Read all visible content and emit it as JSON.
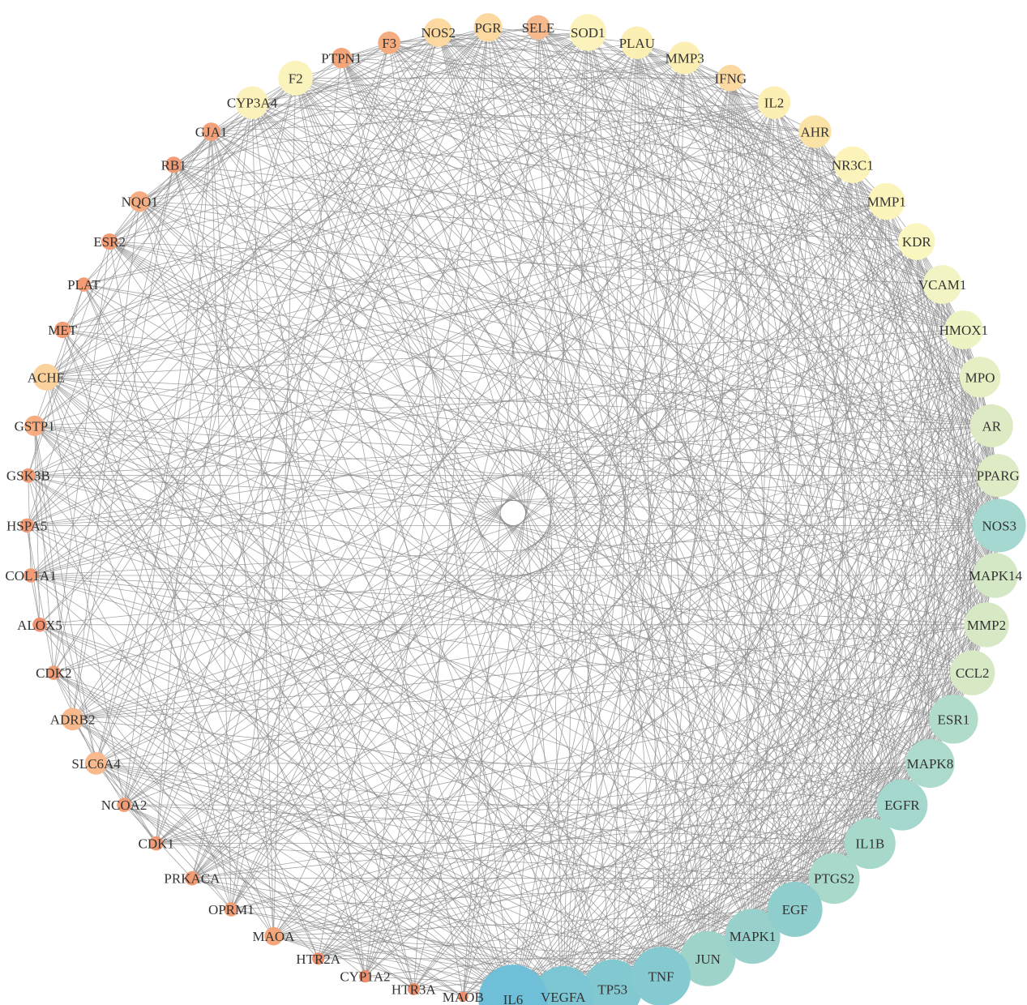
{
  "network": {
    "nodes": [
      {
        "label": "IL6",
        "degree": 68,
        "color": "#6fbfd9"
      },
      {
        "label": "VEGFA",
        "degree": 60,
        "color": "#7cc5d2"
      },
      {
        "label": "TP53",
        "degree": 58,
        "color": "#82c8d1"
      },
      {
        "label": "TNF",
        "degree": 58,
        "color": "#86cad1"
      },
      {
        "label": "JUN",
        "degree": 54,
        "color": "#9dd3c9"
      },
      {
        "label": "MAPK1",
        "degree": 54,
        "color": "#98d1cb"
      },
      {
        "label": "EGF",
        "degree": 54,
        "color": "#90cdcd"
      },
      {
        "label": "PTGS2",
        "degree": 50,
        "color": "#a9d9cb"
      },
      {
        "label": "IL1B",
        "degree": 50,
        "color": "#a6d8cc"
      },
      {
        "label": "EGFR",
        "degree": 50,
        "color": "#a4d7cd"
      },
      {
        "label": "MAPK8",
        "degree": 48,
        "color": "#acdacc"
      },
      {
        "label": "ESR1",
        "degree": 48,
        "color": "#b1dcca"
      },
      {
        "label": "CCL2",
        "degree": 44,
        "color": "#d7e8c4"
      },
      {
        "label": "MMP2",
        "degree": 44,
        "color": "#d7e8c4"
      },
      {
        "label": "MAPK14",
        "degree": 44,
        "color": "#d5e8c5"
      },
      {
        "label": "NOS3",
        "degree": 52,
        "color": "#a5d8d0"
      },
      {
        "label": "PPARG",
        "degree": 42,
        "color": "#deebc4"
      },
      {
        "label": "AR",
        "degree": 42,
        "color": "#ddeac4"
      },
      {
        "label": "MPO",
        "degree": 40,
        "color": "#e6efc3"
      },
      {
        "label": "HMOX1",
        "degree": 38,
        "color": "#eef3c4"
      },
      {
        "label": "VCAM1",
        "degree": 38,
        "color": "#f2f4c3"
      },
      {
        "label": "KDR",
        "degree": 36,
        "color": "#faf6c0"
      },
      {
        "label": "MMP1",
        "degree": 36,
        "color": "#fcf5bb"
      },
      {
        "label": "NR3C1",
        "degree": 36,
        "color": "#fcf3bb"
      },
      {
        "label": "AHR",
        "degree": 32,
        "color": "#fbe3a6"
      },
      {
        "label": "IL2",
        "degree": 32,
        "color": "#fcefb4"
      },
      {
        "label": "IFNG",
        "degree": 26,
        "color": "#fcd9a0"
      },
      {
        "label": "MMP3",
        "degree": 32,
        "color": "#fcefb4"
      },
      {
        "label": "PLAU",
        "degree": 32,
        "color": "#fcefb4"
      },
      {
        "label": "SOD1",
        "degree": 36,
        "color": "#fcf2bb"
      },
      {
        "label": "SELE",
        "degree": 24,
        "color": "#f6b98d"
      },
      {
        "label": "PGR",
        "degree": 28,
        "color": "#fbd9a0"
      },
      {
        "label": "NOS2",
        "degree": 28,
        "color": "#fcd9a0"
      },
      {
        "label": "F3",
        "degree": 22,
        "color": "#f5ad80"
      },
      {
        "label": "PTPN1",
        "degree": 20,
        "color": "#f4a57a"
      },
      {
        "label": "F2",
        "degree": 34,
        "color": "#fbf3bc"
      },
      {
        "label": "CYP3A4",
        "degree": 32,
        "color": "#fbf1ba"
      },
      {
        "label": "GJA1",
        "degree": 18,
        "color": "#f3a27a"
      },
      {
        "label": "RB1",
        "degree": 16,
        "color": "#f29c75"
      },
      {
        "label": "NQO1",
        "degree": 20,
        "color": "#f6ad81"
      },
      {
        "label": "ESR2",
        "degree": 16,
        "color": "#f29c75"
      },
      {
        "label": "PLAT",
        "degree": 14,
        "color": "#f29c75"
      },
      {
        "label": "MET",
        "degree": 16,
        "color": "#f29c75"
      },
      {
        "label": "ACHE",
        "degree": 26,
        "color": "#fbd29c"
      },
      {
        "label": "GSTP1",
        "degree": 20,
        "color": "#f6ad81"
      },
      {
        "label": "GSK3B",
        "degree": 14,
        "color": "#f29c75"
      },
      {
        "label": "HSPA5",
        "degree": 14,
        "color": "#f29c75"
      },
      {
        "label": "COL1A1",
        "degree": 14,
        "color": "#f29c75"
      },
      {
        "label": "ALOX5",
        "degree": 14,
        "color": "#f08f6d"
      },
      {
        "label": "CDK2",
        "degree": 14,
        "color": "#f29c75"
      },
      {
        "label": "ADRB2",
        "degree": 22,
        "color": "#f8b98d"
      },
      {
        "label": "SLC6A4",
        "degree": 22,
        "color": "#f8b98d"
      },
      {
        "label": "NCOA2",
        "degree": 14,
        "color": "#f29c75"
      },
      {
        "label": "CDK1",
        "degree": 14,
        "color": "#f29c75"
      },
      {
        "label": "PRKACA",
        "degree": 14,
        "color": "#f29c75"
      },
      {
        "label": "OPRM1",
        "degree": 14,
        "color": "#f29c75"
      },
      {
        "label": "MAOA",
        "degree": 18,
        "color": "#f4a57a"
      },
      {
        "label": "HTR2A",
        "degree": 12,
        "color": "#ef8e6a"
      },
      {
        "label": "CYP1A2",
        "degree": 12,
        "color": "#ef8e6a"
      },
      {
        "label": "HTR3A",
        "degree": 12,
        "color": "#ef8e6a"
      },
      {
        "label": "MAOB",
        "degree": 10,
        "color": "#ef8e6a"
      }
    ],
    "edge_color": "#8a8a8a"
  }
}
